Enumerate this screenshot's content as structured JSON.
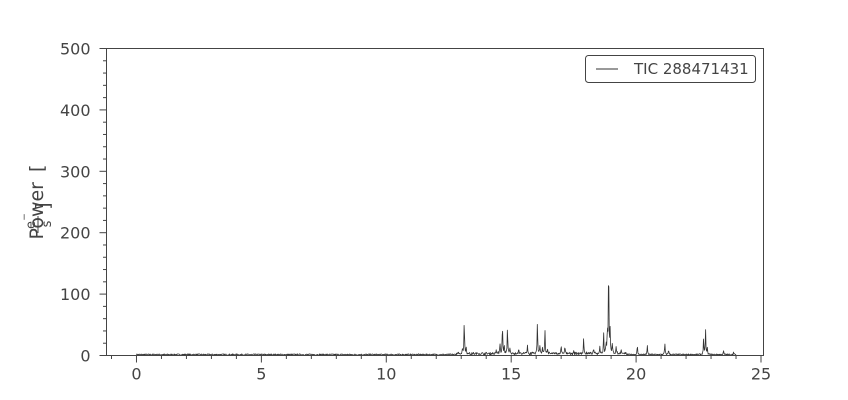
{
  "chart_data": {
    "type": "line",
    "title": "",
    "xlabel": "",
    "ylabel": "Power",
    "ylabel_unit_num": "e",
    "ylabel_unit_sup": "−",
    "ylabel_unit_den": "s",
    "xlim": [
      -1.2,
      25.1
    ],
    "ylim": [
      0,
      500
    ],
    "x_ticks": [
      0,
      5,
      10,
      15,
      20,
      25
    ],
    "y_ticks": [
      0,
      100,
      200,
      300,
      400,
      500
    ],
    "x_tick_labels": [
      "0",
      "5",
      "10",
      "15",
      "20",
      "25"
    ],
    "y_tick_labels": [
      "0",
      "100",
      "200",
      "300",
      "400",
      "500"
    ],
    "x_minor_step": 1,
    "y_minor_step": 20,
    "grid": false,
    "legend_position": "top-right",
    "series": [
      {
        "name": "TIC 288471431",
        "color": "#333333",
        "x_range": [
          0.0,
          24.0
        ],
        "baseline": 1.5,
        "noise": 1.2,
        "peaks": [
          {
            "x": 13.05,
            "y": 8
          },
          {
            "x": 13.12,
            "y": 58
          },
          {
            "x": 13.2,
            "y": 10
          },
          {
            "x": 14.4,
            "y": 6
          },
          {
            "x": 14.55,
            "y": 18
          },
          {
            "x": 14.65,
            "y": 49
          },
          {
            "x": 14.72,
            "y": 12
          },
          {
            "x": 14.85,
            "y": 44
          },
          {
            "x": 14.95,
            "y": 8
          },
          {
            "x": 15.3,
            "y": 8
          },
          {
            "x": 15.65,
            "y": 14
          },
          {
            "x": 16.05,
            "y": 53
          },
          {
            "x": 16.15,
            "y": 14
          },
          {
            "x": 16.25,
            "y": 10
          },
          {
            "x": 16.35,
            "y": 41
          },
          {
            "x": 16.45,
            "y": 8
          },
          {
            "x": 17.0,
            "y": 13
          },
          {
            "x": 17.15,
            "y": 12
          },
          {
            "x": 17.5,
            "y": 6
          },
          {
            "x": 17.9,
            "y": 26
          },
          {
            "x": 18.3,
            "y": 8
          },
          {
            "x": 18.55,
            "y": 13
          },
          {
            "x": 18.7,
            "y": 35
          },
          {
            "x": 18.8,
            "y": 18
          },
          {
            "x": 18.85,
            "y": 38
          },
          {
            "x": 18.9,
            "y": 160
          },
          {
            "x": 18.96,
            "y": 38
          },
          {
            "x": 19.05,
            "y": 14
          },
          {
            "x": 19.2,
            "y": 12
          },
          {
            "x": 19.4,
            "y": 8
          },
          {
            "x": 20.05,
            "y": 15
          },
          {
            "x": 20.45,
            "y": 14
          },
          {
            "x": 21.15,
            "y": 19
          },
          {
            "x": 21.3,
            "y": 9
          },
          {
            "x": 22.7,
            "y": 26
          },
          {
            "x": 22.78,
            "y": 43
          },
          {
            "x": 22.85,
            "y": 10
          },
          {
            "x": 23.5,
            "y": 6
          },
          {
            "x": 23.9,
            "y": 4
          }
        ]
      }
    ]
  }
}
